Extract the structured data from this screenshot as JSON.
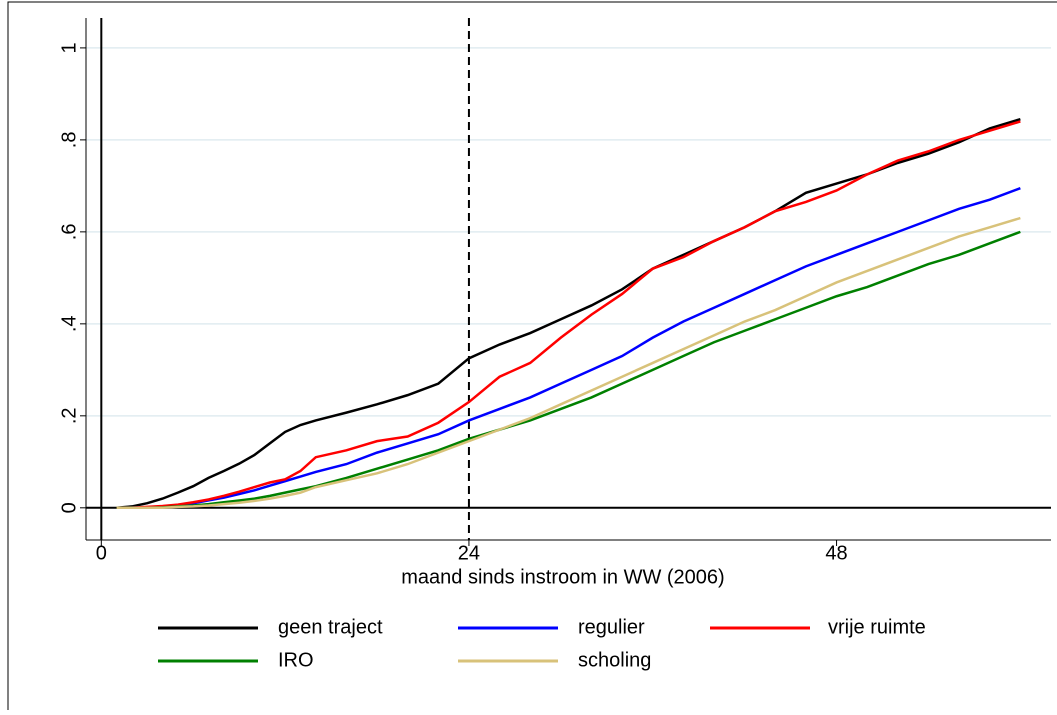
{
  "chart_data": {
    "type": "line",
    "xlabel": "maand sinds instroom in WW (2006)",
    "x": [
      1,
      2,
      3,
      4,
      5,
      6,
      7,
      8,
      9,
      10,
      11,
      12,
      13,
      14,
      16,
      18,
      20,
      22,
      24,
      26,
      28,
      30,
      32,
      34,
      36,
      38,
      40,
      42,
      44,
      46,
      48,
      50,
      52,
      54,
      56,
      58,
      60
    ],
    "series": [
      {
        "name": "geen traject",
        "color": "#000000",
        "values": [
          0,
          0.003,
          0.01,
          0.02,
          0.033,
          0.047,
          0.065,
          0.08,
          0.096,
          0.115,
          0.14,
          0.165,
          0.18,
          0.19,
          0.207,
          0.225,
          0.245,
          0.27,
          0.325,
          0.355,
          0.38,
          0.41,
          0.44,
          0.475,
          0.52,
          0.55,
          0.58,
          0.61,
          0.645,
          0.685,
          0.705,
          0.725,
          0.75,
          0.77,
          0.795,
          0.825,
          0.845
        ]
      },
      {
        "name": "regulier",
        "color": "#0000ff",
        "values": [
          0,
          0,
          0.001,
          0.002,
          0.005,
          0.01,
          0.016,
          0.022,
          0.03,
          0.038,
          0.048,
          0.058,
          0.068,
          0.078,
          0.095,
          0.12,
          0.14,
          0.16,
          0.19,
          0.215,
          0.24,
          0.27,
          0.3,
          0.33,
          0.37,
          0.405,
          0.435,
          0.465,
          0.495,
          0.525,
          0.55,
          0.575,
          0.6,
          0.625,
          0.65,
          0.67,
          0.695
        ]
      },
      {
        "name": "vrije ruimte",
        "color": "#ff0000",
        "values": [
          0,
          0,
          0.002,
          0.004,
          0.007,
          0.012,
          0.018,
          0.026,
          0.035,
          0.045,
          0.055,
          0.062,
          0.08,
          0.11,
          0.125,
          0.145,
          0.155,
          0.185,
          0.23,
          0.285,
          0.315,
          0.37,
          0.42,
          0.465,
          0.52,
          0.545,
          0.58,
          0.61,
          0.645,
          0.665,
          0.69,
          0.725,
          0.755,
          0.775,
          0.8,
          0.82,
          0.84
        ]
      },
      {
        "name": "IRO",
        "color": "#008000",
        "values": [
          0,
          0,
          0,
          0.001,
          0.003,
          0.005,
          0.008,
          0.012,
          0.016,
          0.02,
          0.026,
          0.033,
          0.04,
          0.047,
          0.065,
          0.085,
          0.105,
          0.125,
          0.15,
          0.17,
          0.19,
          0.215,
          0.24,
          0.27,
          0.3,
          0.33,
          0.36,
          0.385,
          0.41,
          0.435,
          0.46,
          0.48,
          0.505,
          0.53,
          0.55,
          0.575,
          0.6
        ]
      },
      {
        "name": "scholing",
        "color": "#d8c27a",
        "values": [
          0,
          0,
          0,
          0,
          0.002,
          0.003,
          0.005,
          0.008,
          0.011,
          0.015,
          0.02,
          0.026,
          0.033,
          0.045,
          0.06,
          0.075,
          0.095,
          0.12,
          0.145,
          0.17,
          0.195,
          0.225,
          0.255,
          0.285,
          0.315,
          0.345,
          0.375,
          0.405,
          0.43,
          0.46,
          0.49,
          0.515,
          0.54,
          0.565,
          0.59,
          0.61,
          0.63
        ]
      }
    ],
    "xlim": [
      -1,
      62
    ],
    "xticks": [
      0,
      24,
      48
    ],
    "ylim": [
      -0.07,
      1.065
    ],
    "yticks": [
      0,
      {
        "value": 0.2,
        "label": ".2"
      },
      {
        "value": 0.4,
        "label": ".4"
      },
      {
        "value": 0.6,
        "label": ".6"
      },
      {
        "value": 0.8,
        "label": ".8"
      },
      1
    ],
    "grid": true,
    "xlines": [
      {
        "value": 0,
        "dashed": false
      },
      {
        "value": 24,
        "dashed": true
      }
    ],
    "ylines": [
      0
    ],
    "legend": "bottom"
  }
}
